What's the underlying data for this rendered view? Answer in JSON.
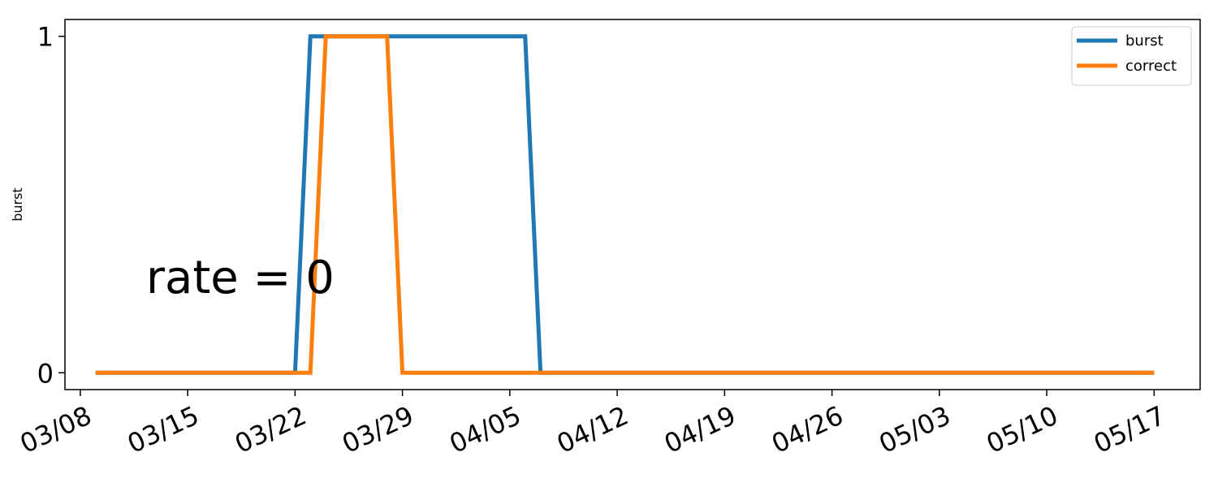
{
  "chart_data": {
    "type": "line",
    "title": "",
    "xlabel": "",
    "ylabel": "burst",
    "x_axis_type": "date",
    "x_tick_labels": [
      "03/08",
      "03/15",
      "03/22",
      "03/29",
      "04/05",
      "04/12",
      "04/19",
      "04/26",
      "05/03",
      "05/10",
      "05/17"
    ],
    "y_ticks": [
      0,
      1
    ],
    "y_tick_labels": [
      "0",
      "1"
    ],
    "ylim": [
      -0.05,
      1.05
    ],
    "xlim": [
      "03/07",
      "05/20"
    ],
    "grid": false,
    "legend_position": "top-right",
    "annotation": "rate = 0",
    "series": [
      {
        "name": "burst",
        "color": "#1f77b4",
        "points": [
          {
            "x": "03/09",
            "y": 0
          },
          {
            "x": "03/22",
            "y": 0
          },
          {
            "x": "03/23",
            "y": 1
          },
          {
            "x": "04/06",
            "y": 1
          },
          {
            "x": "04/07",
            "y": 0
          },
          {
            "x": "05/17",
            "y": 0
          }
        ]
      },
      {
        "name": "correct",
        "color": "#ff7f0e",
        "points": [
          {
            "x": "03/09",
            "y": 0
          },
          {
            "x": "03/23",
            "y": 0
          },
          {
            "x": "03/24",
            "y": 1
          },
          {
            "x": "03/28",
            "y": 1
          },
          {
            "x": "03/29",
            "y": 0
          },
          {
            "x": "05/17",
            "y": 0
          }
        ]
      }
    ]
  }
}
